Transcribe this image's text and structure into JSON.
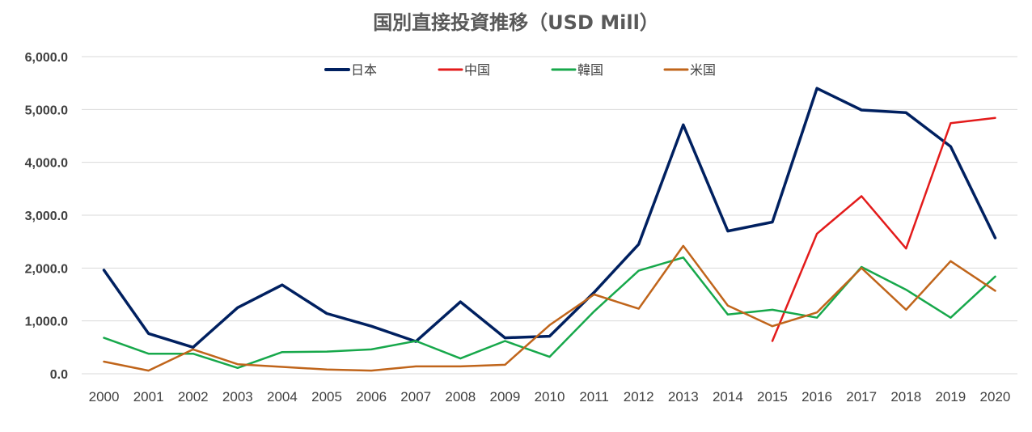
{
  "chart_data": {
    "type": "line",
    "title": "国別直接投資推移（USD Mill）",
    "xlabel": "",
    "ylabel": "",
    "ylim": [
      0,
      6000
    ],
    "yticks": [
      "0.0",
      "1,000.0",
      "2,000.0",
      "3,000.0",
      "4,000.0",
      "5,000.0",
      "6,000.0"
    ],
    "categories": [
      "2000",
      "2001",
      "2002",
      "2003",
      "2004",
      "2005",
      "2006",
      "2007",
      "2008",
      "2009",
      "2010",
      "2011",
      "2012",
      "2013",
      "2014",
      "2015",
      "2016",
      "2017",
      "2018",
      "2019",
      "2020"
    ],
    "grid": true,
    "legend_position": "top",
    "series": [
      {
        "name": "日本",
        "color": "#002060",
        "values": [
          1960,
          760,
          500,
          1250,
          1680,
          1140,
          900,
          610,
          1360,
          680,
          710,
          1540,
          2450,
          4710,
          2700,
          2870,
          5400,
          4990,
          4940,
          4300,
          2570
        ]
      },
      {
        "name": "中国",
        "color": "#e31b1b",
        "values": [
          null,
          null,
          null,
          null,
          null,
          null,
          null,
          null,
          null,
          null,
          null,
          null,
          null,
          null,
          null,
          620,
          2650,
          3360,
          2370,
          4740,
          4840
        ]
      },
      {
        "name": "韓国",
        "color": "#17a84b",
        "values": [
          680,
          380,
          380,
          110,
          410,
          420,
          460,
          620,
          290,
          620,
          320,
          1180,
          1950,
          2200,
          1120,
          1210,
          1060,
          2020,
          1590,
          1060,
          1840
        ]
      },
      {
        "name": "米国",
        "color": "#c0651b",
        "values": [
          230,
          60,
          460,
          180,
          130,
          80,
          60,
          140,
          140,
          170,
          920,
          1500,
          1230,
          2420,
          1290,
          900,
          1160,
          2000,
          1210,
          2130,
          1570
        ]
      }
    ]
  }
}
